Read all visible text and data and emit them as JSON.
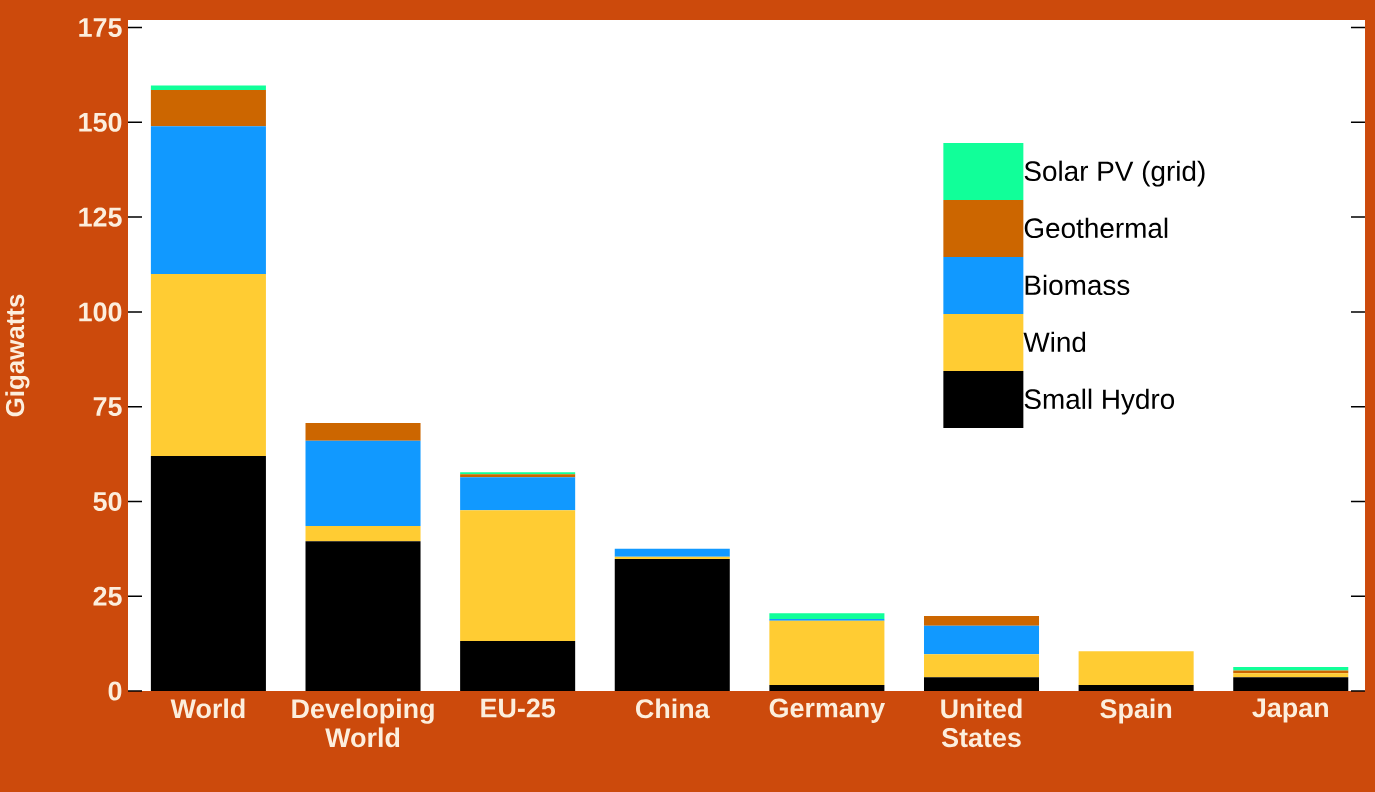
{
  "chart_data": {
    "type": "bar",
    "stacked": true,
    "ylabel": "Gigawatts",
    "categories": [
      "World",
      "Developing World",
      "EU-25",
      "China",
      "Germany",
      "United States",
      "Spain",
      "Japan"
    ],
    "series": [
      {
        "name": "Small Hydro",
        "color": "#000000",
        "values": [
          62,
          39.5,
          13.2,
          34.8,
          1.6,
          3.6,
          1.6,
          3.6
        ]
      },
      {
        "name": "Wind",
        "color": "#ffcc33",
        "values": [
          48,
          4,
          34.5,
          0.6,
          16.9,
          6.1,
          8.9,
          1.1
        ]
      },
      {
        "name": "Biomass",
        "color": "#1199ff",
        "values": [
          39,
          22.5,
          8.7,
          2.1,
          0.5,
          7.5,
          0,
          0
        ]
      },
      {
        "name": "Geothermal",
        "color": "#cc6600",
        "values": [
          9.5,
          4.7,
          0.8,
          0,
          0,
          2.6,
          0,
          0.7
        ]
      },
      {
        "name": "Solar PV (grid)",
        "color": "#11ff99",
        "values": [
          1.2,
          0,
          0.5,
          0,
          1.5,
          0,
          0,
          0.9
        ]
      }
    ],
    "ylim": [
      0,
      177
    ],
    "yticks": [
      0,
      25,
      50,
      75,
      100,
      125,
      150,
      175
    ],
    "legend": "top right"
  }
}
